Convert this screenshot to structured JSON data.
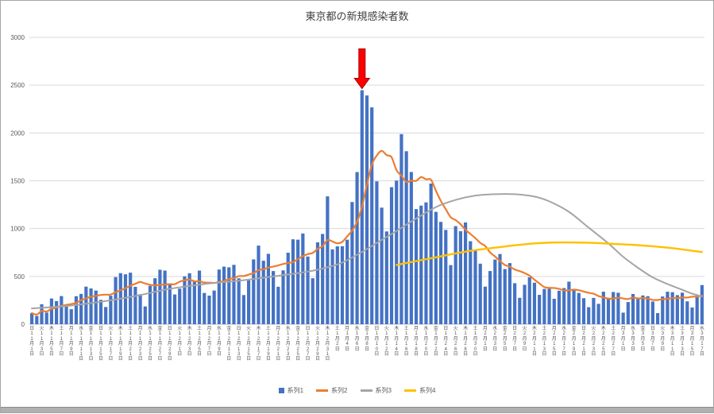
{
  "title": "東京都の新規感染者数",
  "colors": {
    "bar": "#4472C4",
    "series2": "#ED7D31",
    "series3": "#A5A5A5",
    "series4": "#FFC000",
    "grid": "#D9D9D9",
    "axis_line": "#BFBFBF",
    "axis_text": "#595959",
    "title_text": "#404040",
    "arrow": "#FF0000",
    "arrow_outline": "#A00000"
  },
  "chart_data": {
    "type": "bar",
    "title": "東京都の新規感染者数",
    "legend_position": "bottom",
    "grid": "horizontal",
    "y_axis": {
      "min": 0,
      "max": 3000,
      "tick_interval": 500,
      "ticks": [
        0,
        500,
        1000,
        1500,
        2000,
        2500,
        3000
      ]
    },
    "x_axis": {
      "unit": "day",
      "label_every_n_days": 2,
      "day_of_week_names": [
        "日",
        "月",
        "火",
        "水",
        "木",
        "金",
        "土"
      ],
      "start_day_of_week": "日",
      "months": [
        {
          "month": 11,
          "from_day": 1,
          "to_day": 30
        },
        {
          "month": 12,
          "from_day": 1,
          "to_day": 31
        },
        {
          "month": 1,
          "from_day": 1,
          "to_day": 31
        },
        {
          "month": 2,
          "from_day": 1,
          "to_day": 28
        },
        {
          "month": 3,
          "from_day": 1,
          "to_day": 17
        }
      ],
      "first_label": "日 11月1日",
      "last_label": "水 3月17日"
    },
    "series": [
      {
        "name": "系列1",
        "type": "bar",
        "color": "#4472C4",
        "values": [
          116,
          87,
          209,
          122,
          269,
          242,
          294,
          189,
          157,
          293,
          317,
          393,
          374,
          352,
          255,
          180,
          298,
          493,
          534,
          522,
          539,
          391,
          314,
          186,
          401,
          481,
          570,
          561,
          418,
          311,
          372,
          500,
          533,
          449,
          561,
          327,
          299,
          352,
          572,
          602,
          595,
          621,
          480,
          305,
          460,
          678,
          822,
          664,
          736,
          556,
          392,
          563,
          748,
          888,
          884,
          949,
          708,
          481,
          856,
          944,
          1337,
          783,
          814,
          816,
          884,
          1278,
          1591,
          2447,
          2392,
          2268,
          1494,
          1219,
          970,
          1433,
          1502,
          1988,
          1809,
          1592,
          1204,
          1240,
          1274,
          1471,
          1175,
          1070,
          986,
          618,
          1026,
          973,
          1064,
          868,
          769,
          633,
          393,
          556,
          676,
          734,
          577,
          639,
          429,
          276,
          412,
          491,
          434,
          307,
          369,
          371,
          266,
          350,
          378,
          445,
          353,
          327,
          272,
          178,
          275,
          213,
          340,
          270,
          337,
          329,
          121,
          232,
          316,
          279,
          301,
          293,
          237,
          116,
          290,
          340,
          335,
          304,
          330,
          239,
          175,
          300,
          409
        ]
      },
      {
        "name": "系列2",
        "type": "line",
        "color": "#ED7D31",
        "derivation": "7-day moving average of 系列1"
      },
      {
        "name": "系列3",
        "type": "line",
        "color": "#A5A5A5",
        "points_index_value": [
          [
            0,
            165
          ],
          [
            7,
            190
          ],
          [
            14,
            235
          ],
          [
            21,
            295
          ],
          [
            28,
            370
          ],
          [
            35,
            420
          ],
          [
            42,
            455
          ],
          [
            49,
            500
          ],
          [
            56,
            550
          ],
          [
            60,
            595
          ],
          [
            63,
            645
          ],
          [
            67,
            755
          ],
          [
            70,
            850
          ],
          [
            74,
            975
          ],
          [
            78,
            1105
          ],
          [
            82,
            1225
          ],
          [
            86,
            1300
          ],
          [
            90,
            1345
          ],
          [
            94,
            1360
          ],
          [
            98,
            1360
          ],
          [
            102,
            1335
          ],
          [
            105,
            1285
          ],
          [
            109,
            1175
          ],
          [
            113,
            1010
          ],
          [
            117,
            845
          ],
          [
            120,
            705
          ],
          [
            123,
            590
          ],
          [
            126,
            490
          ],
          [
            129,
            420
          ],
          [
            132,
            360
          ],
          [
            134,
            320
          ],
          [
            136,
            290
          ]
        ]
      },
      {
        "name": "系列4",
        "type": "line",
        "color": "#FFC000",
        "points_index_value": [
          [
            74,
            620
          ],
          [
            78,
            660
          ],
          [
            82,
            700
          ],
          [
            86,
            740
          ],
          [
            90,
            775
          ],
          [
            94,
            800
          ],
          [
            98,
            825
          ],
          [
            102,
            845
          ],
          [
            106,
            855
          ],
          [
            110,
            855
          ],
          [
            114,
            850
          ],
          [
            118,
            840
          ],
          [
            122,
            830
          ],
          [
            126,
            815
          ],
          [
            130,
            795
          ],
          [
            133,
            775
          ],
          [
            136,
            755
          ]
        ]
      }
    ],
    "annotation": {
      "type": "block-arrow-down",
      "color": "#FF0000",
      "at_index": 67,
      "at_date": "1月7日",
      "at_value": 2447
    }
  },
  "legend": {
    "labels": [
      "系列1",
      "系列2",
      "系列3",
      "系列4"
    ]
  }
}
